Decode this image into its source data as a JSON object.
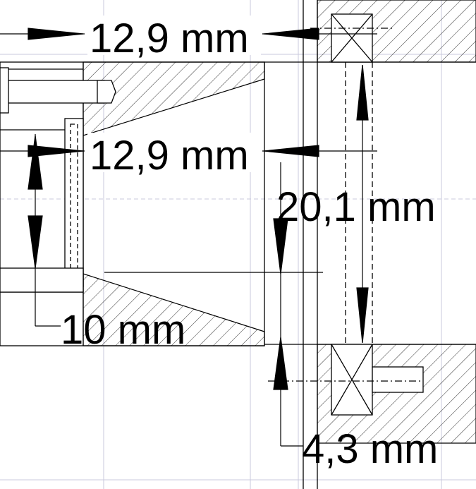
{
  "dimensions": {
    "top_width": "12,9 mm",
    "mid_width": "12,9 mm",
    "gap_height": "20,1 mm",
    "left_height": "10 mm",
    "bottom_offset": "4,3 mm"
  },
  "colors": {
    "line": "#000000",
    "grid": "#c8c8dc",
    "background": "#ffffff"
  }
}
